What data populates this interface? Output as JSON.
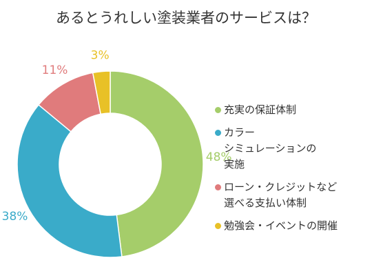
{
  "chart_data": {
    "type": "pie",
    "donut": true,
    "title": "あるとうれしい塗装業者のサービスは？",
    "slices": [
      {
        "label": "充実の保証体制",
        "value": 48,
        "value_label": "48%",
        "color": "#a5cd6a"
      },
      {
        "label": "カラー\nシミュレーションの\n実施",
        "value": 38,
        "value_label": "38%",
        "color": "#3aabc9"
      },
      {
        "label": "ローン・クレジットなど\n選べる支払い体制",
        "value": 11,
        "value_label": "11%",
        "color": "#e07b7c"
      },
      {
        "label": "勉強会・イベントの開催",
        "value": 3,
        "value_label": "3%",
        "color": "#e8c127"
      }
    ],
    "legend_position": "right"
  }
}
